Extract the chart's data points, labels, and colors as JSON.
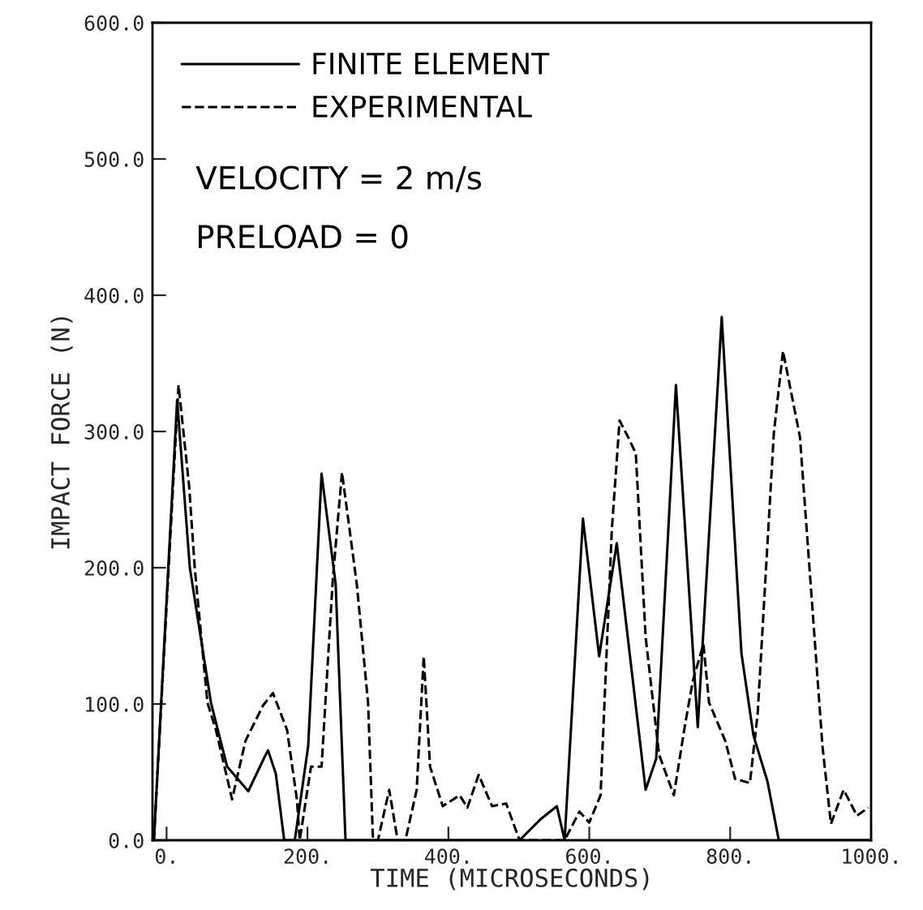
{
  "chart_data": {
    "type": "line",
    "xlabel": "TIME (MICROSECONDS)",
    "ylabel": "IMPACT FORCE (N)",
    "xlim": [
      -20,
      1000
    ],
    "ylim": [
      0,
      600
    ],
    "xticks": [
      {
        "value": 0,
        "label": "0."
      },
      {
        "value": 200,
        "label": "200."
      },
      {
        "value": 400,
        "label": "400."
      },
      {
        "value": 600,
        "label": "600."
      },
      {
        "value": 800,
        "label": "800."
      },
      {
        "value": 1000,
        "label": "1000."
      }
    ],
    "yticks": [
      {
        "value": 0,
        "label": "0.0"
      },
      {
        "value": 100,
        "label": "100.0"
      },
      {
        "value": 200,
        "label": "200.0"
      },
      {
        "value": 300,
        "label": "300.0"
      },
      {
        "value": 400,
        "label": "400.0"
      },
      {
        "value": 500,
        "label": "500.0"
      },
      {
        "value": 600,
        "label": "600.0"
      }
    ],
    "legend": "top left",
    "grid": false,
    "annotations": [
      "VELOCITY = 2 m/s",
      "PRELOAD = 0"
    ],
    "series": [
      {
        "name": "FINITE ELEMENT",
        "color": "#000000",
        "line_style": "solid",
        "x": [
          -18,
          15,
          33,
          63,
          86,
          116,
          139,
          144,
          155,
          167,
          182,
          201,
          220,
          240,
          254,
          400,
          501,
          530,
          554,
          565,
          591,
          614,
          639,
          680,
          695,
          723,
          754,
          788,
          816,
          833,
          853,
          869,
          1000
        ],
        "values": [
          0,
          323,
          200,
          101,
          54,
          36,
          61,
          66,
          49,
          0,
          0,
          69,
          269,
          188,
          0,
          0,
          0,
          15,
          25,
          0,
          236,
          135,
          218,
          37,
          60,
          334,
          83,
          384,
          137,
          77,
          43,
          0,
          0
        ]
      },
      {
        "name": "EXPERIMENTAL",
        "color": "#000000",
        "line_style": "dashed",
        "x": [
          -18,
          17,
          32,
          40,
          58,
          70,
          93,
          112,
          137,
          151,
          171,
          185,
          189,
          205,
          220,
          236,
          249,
          270,
          286,
          293,
          300,
          316,
          328,
          339,
          355,
          365,
          374,
          392,
          416,
          427,
          443,
          462,
          482,
          501,
          565,
          586,
          600,
          616,
          632,
          643,
          655,
          666,
          680,
          699,
          720,
          736,
          747,
          762,
          770,
          793,
          807,
          828,
          839,
          862,
          875,
          899,
          931,
          943,
          961,
          980,
          996
        ],
        "values": [
          0,
          334,
          260,
          200,
          101,
          81,
          30,
          73,
          99,
          108,
          81,
          30,
          0,
          54,
          54,
          192,
          270,
          188,
          101,
          0,
          0,
          37,
          0,
          0,
          37,
          135,
          54,
          25,
          33,
          24,
          48,
          25,
          27,
          0,
          0,
          21,
          13,
          33,
          228,
          308,
          296,
          284,
          149,
          63,
          33,
          85,
          117,
          144,
          101,
          73,
          45,
          42,
          93,
          299,
          359,
          296,
          69,
          12,
          37,
          18,
          24
        ]
      }
    ]
  }
}
